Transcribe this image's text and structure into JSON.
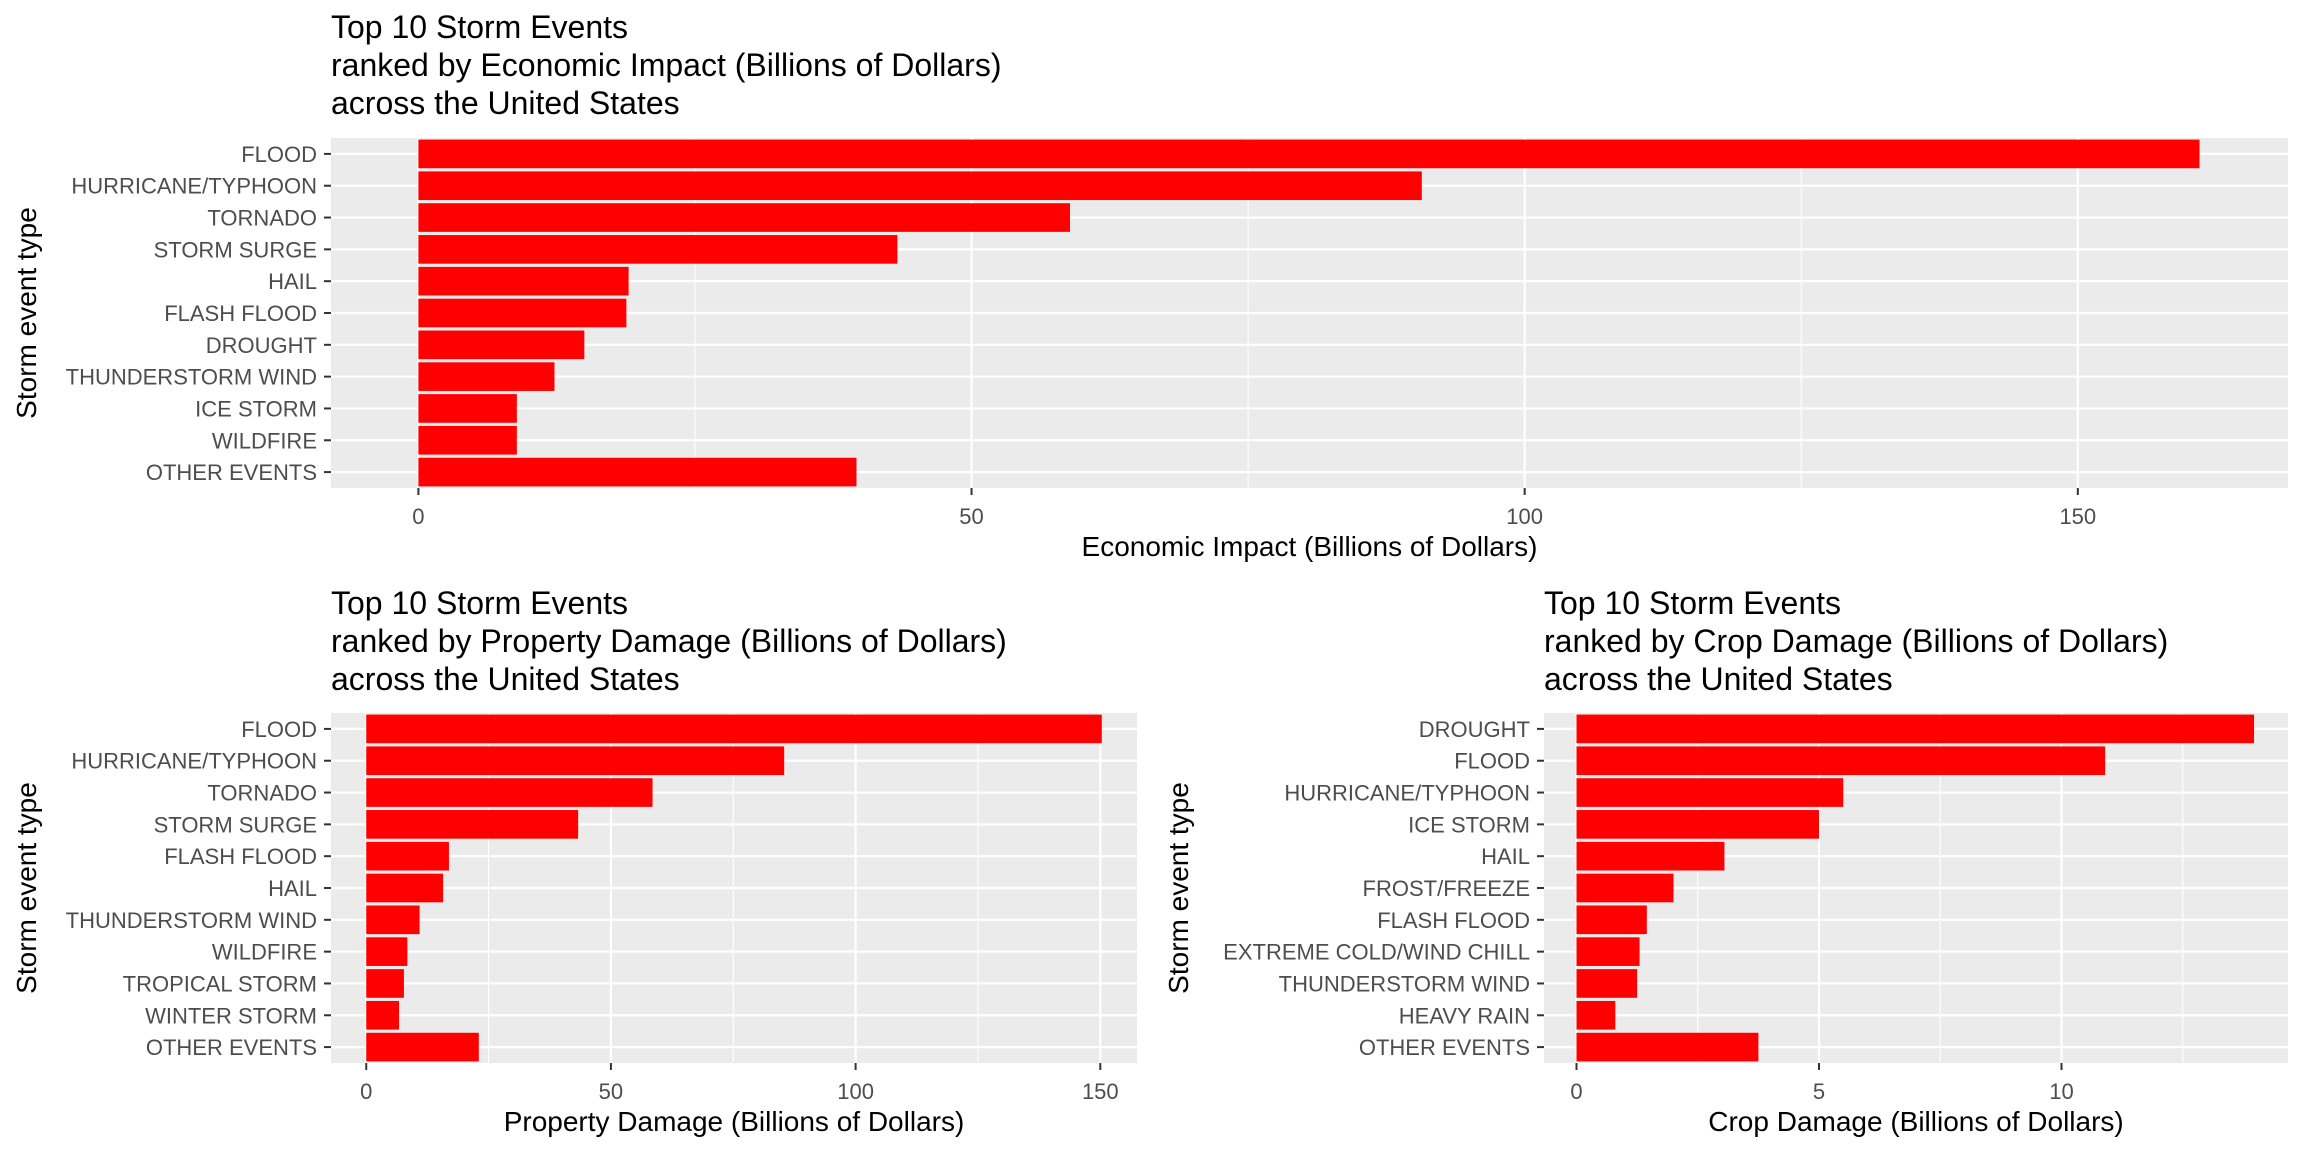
{
  "chart_data": [
    {
      "type": "bar",
      "orientation": "horizontal",
      "title": [
        "Top 10 Storm Events",
        "ranked by Economic Impact (Billions of Dollars)",
        "across the United States"
      ],
      "xlabel": "Economic Impact (Billions of Dollars)",
      "ylabel": "Storm event type",
      "categories": [
        "FLOOD",
        "HURRICANE/TYPHOON",
        "TORNADO",
        "STORM SURGE",
        "HAIL",
        "FLASH FLOOD",
        "DROUGHT",
        "THUNDERSTORM WIND",
        "ICE STORM",
        "WILDFIRE",
        "OTHER EVENTS"
      ],
      "values": [
        161.0,
        90.7,
        58.9,
        43.3,
        19.0,
        18.8,
        15.0,
        12.3,
        8.9,
        8.9,
        39.6
      ],
      "xlim": [
        -7.9,
        169.0
      ],
      "xticks": [
        0,
        50,
        100,
        150
      ],
      "grid": true,
      "bar_color": "#ff0000",
      "panel_color": "#ebebeb"
    },
    {
      "type": "bar",
      "orientation": "horizontal",
      "title": [
        "Top 10 Storm Events",
        "ranked by Property Damage (Billions of Dollars)",
        "across the United States"
      ],
      "xlabel": "Property Damage (Billions of Dollars)",
      "ylabel": "Storm event type",
      "categories": [
        "FLOOD",
        "HURRICANE/TYPHOON",
        "TORNADO",
        "STORM SURGE",
        "FLASH FLOOD",
        "HAIL",
        "THUNDERSTORM WIND",
        "WILDFIRE",
        "TROPICAL STORM",
        "WINTER STORM",
        "OTHER EVENTS"
      ],
      "values": [
        150.3,
        85.4,
        58.5,
        43.3,
        16.9,
        15.7,
        10.9,
        8.4,
        7.7,
        6.7,
        23.0
      ],
      "xlim": [
        -7.2,
        157.5
      ],
      "xticks": [
        0,
        50,
        100,
        150
      ],
      "grid": true,
      "bar_color": "#ff0000",
      "panel_color": "#ebebeb"
    },
    {
      "type": "bar",
      "orientation": "horizontal",
      "title": [
        "Top 10 Storm Events",
        "ranked by Crop Damage (Billions of Dollars)",
        "across the United States"
      ],
      "xlabel": "Crop Damage (Billions of Dollars)",
      "ylabel": "Storm event type",
      "categories": [
        "DROUGHT",
        "FLOOD",
        "HURRICANE/TYPHOON",
        "ICE STORM",
        "HAIL",
        "FROST/FREEZE",
        "FLASH FLOOD",
        "EXTREME COLD/WIND CHILL",
        "THUNDERSTORM WIND",
        "HEAVY RAIN",
        "OTHER EVENTS"
      ],
      "values": [
        13.97,
        10.9,
        5.5,
        5.0,
        3.05,
        2.0,
        1.45,
        1.3,
        1.25,
        0.8,
        3.75
      ],
      "xlim": [
        -0.67,
        14.67
      ],
      "xticks": [
        0,
        5,
        10
      ],
      "grid": true,
      "bar_color": "#ff0000",
      "panel_color": "#ebebeb"
    }
  ]
}
